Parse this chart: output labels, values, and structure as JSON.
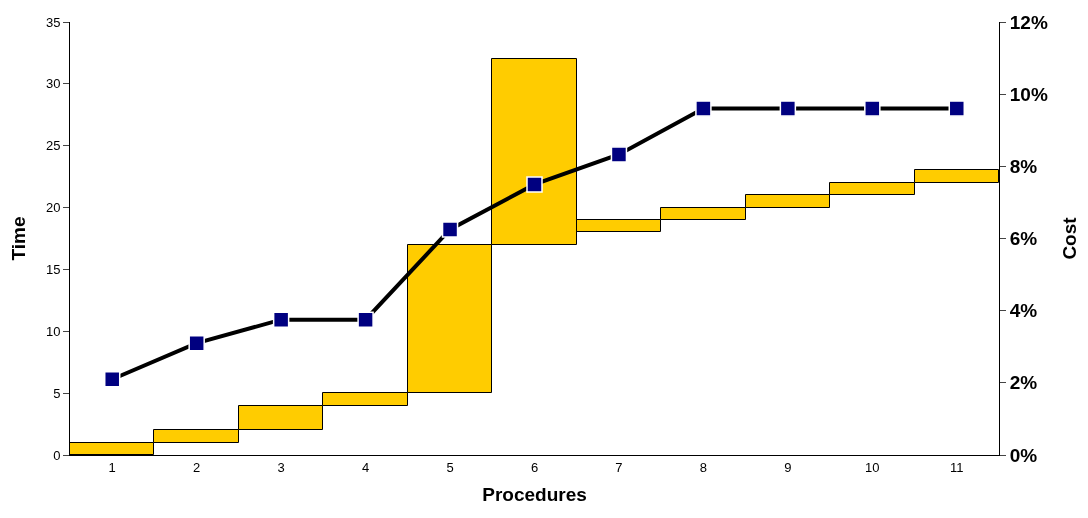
{
  "chart_data": {
    "type": "bar",
    "xlabel": "Procedures",
    "ylabel": "Time",
    "y2label": "Cost",
    "categories": [
      "1",
      "2",
      "3",
      "4",
      "5",
      "6",
      "7",
      "8",
      "9",
      "10",
      "11"
    ],
    "ylim": [
      0,
      35
    ],
    "yticks": [
      0,
      5,
      10,
      15,
      20,
      25,
      30,
      35
    ],
    "y2lim": [
      0,
      12
    ],
    "y2ticks": [
      {
        "value": 0,
        "label": "0%"
      },
      {
        "value": 2,
        "label": "2%"
      },
      {
        "value": 4,
        "label": "4%"
      },
      {
        "value": 6,
        "label": "6%"
      },
      {
        "value": 8,
        "label": "8%"
      },
      {
        "value": 10,
        "label": "10%"
      },
      {
        "value": 12,
        "label": "12%"
      }
    ],
    "series": [
      {
        "color": "#ffcc00",
        "base": [
          0,
          1,
          2,
          4,
          5,
          17,
          18,
          19,
          20,
          21,
          22
        ],
        "values": [
          1,
          1,
          2,
          1,
          12,
          15,
          1,
          1,
          1,
          1,
          1
        ]
      },
      {
        "type": "line",
        "axis": "y2",
        "color": "#000080",
        "marker": "square",
        "line_style": "solid",
        "values": [
          2.1,
          3.1,
          3.75,
          3.75,
          6.25,
          7.5,
          8.33,
          9.6,
          9.6,
          9.6,
          9.6
        ]
      }
    ]
  }
}
